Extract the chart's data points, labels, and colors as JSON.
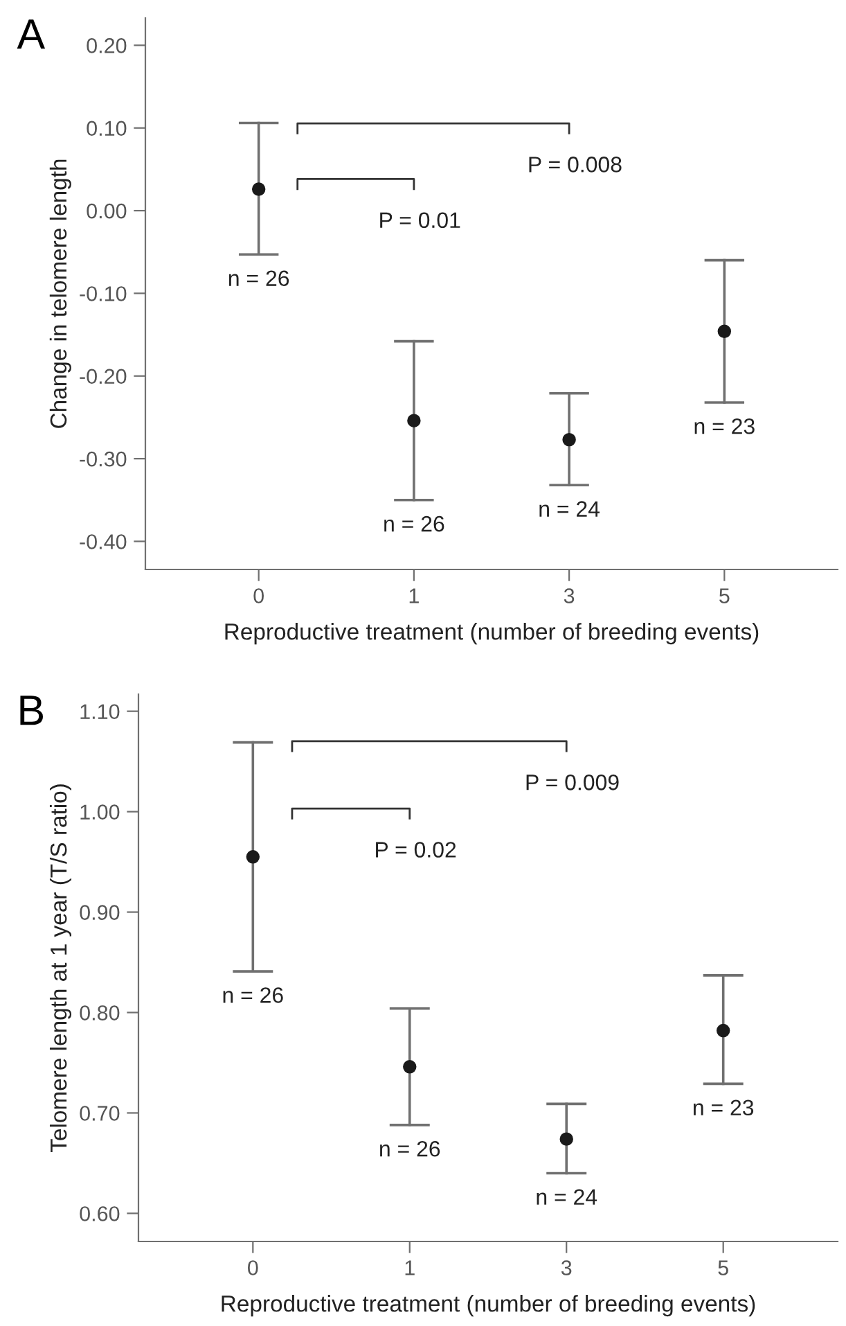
{
  "chart_data": [
    {
      "type": "scatter",
      "title": "A",
      "xlabel": "Reproductive treatment (number of breeding events)",
      "ylabel": "Change in telomere length",
      "categories": [
        "0",
        "1",
        "3",
        "5"
      ],
      "series": [
        {
          "color": "#1a1a1a",
          "values": [
            0.026,
            -0.254,
            -0.277,
            -0.146
          ],
          "errors": [
            [
              -0.053,
              0.106
            ],
            [
              -0.35,
              -0.158
            ],
            [
              -0.332,
              -0.221
            ],
            [
              -0.232,
              -0.06
            ]
          ]
        }
      ],
      "ylim": [
        -0.434,
        0.233
      ],
      "yticks": [
        {
          "value": -0.4,
          "label": "-0.40"
        },
        {
          "value": -0.3,
          "label": "-0.30"
        },
        {
          "value": -0.2,
          "label": "-0.20"
        },
        {
          "value": -0.1,
          "label": "-0.10"
        },
        {
          "value": 0,
          "label": "0.00"
        },
        {
          "value": 0.1,
          "label": "0.10"
        },
        {
          "value": 0.2,
          "label": "0.20"
        }
      ],
      "marker": "circle",
      "grid": false,
      "legend": false,
      "annotations": [
        "P = 0.01",
        "P = 0.008",
        {
          "text": "n = 26",
          "x": "0",
          "y": -0.053
        },
        {
          "text": "n = 26",
          "x": "1",
          "y": -0.35
        },
        {
          "text": "n = 24",
          "x": "3",
          "y": -0.332
        },
        {
          "text": "n = 23",
          "x": "5",
          "y": -0.232
        }
      ]
    },
    {
      "type": "scatter",
      "title": "B",
      "xlabel": "Reproductive treatment (number of breeding events)",
      "ylabel": "Telomere length at 1 year (T/S ratio)",
      "categories": [
        "0",
        "1",
        "3",
        "5"
      ],
      "series": [
        {
          "color": "#1a1a1a",
          "values": [
            0.955,
            0.746,
            0.674,
            0.782
          ],
          "errors": [
            [
              0.841,
              1.069
            ],
            [
              0.688,
              0.804
            ],
            [
              0.64,
              0.709
            ],
            [
              0.729,
              0.837
            ]
          ]
        }
      ],
      "ylim": [
        0.572,
        1.117
      ],
      "yticks": [
        {
          "value": 0.6,
          "label": "0.60"
        },
        {
          "value": 0.7,
          "label": "0.70"
        },
        {
          "value": 0.8,
          "label": "0.80"
        },
        {
          "value": 0.9,
          "label": "0.90"
        },
        {
          "value": 1.0,
          "label": "1.00"
        },
        {
          "value": 1.1,
          "label": "1.10"
        }
      ],
      "marker": "circle",
      "grid": false,
      "legend": false,
      "annotations": [
        "P = 0.02",
        "P = 0.009",
        {
          "text": "n = 26",
          "x": "0",
          "y": 0.841
        },
        {
          "text": "n = 26",
          "x": "1",
          "y": 0.688
        },
        {
          "text": "n = 24",
          "x": "3",
          "y": 0.64
        },
        {
          "text": "n = 23",
          "x": "5",
          "y": 0.729
        }
      ]
    }
  ]
}
